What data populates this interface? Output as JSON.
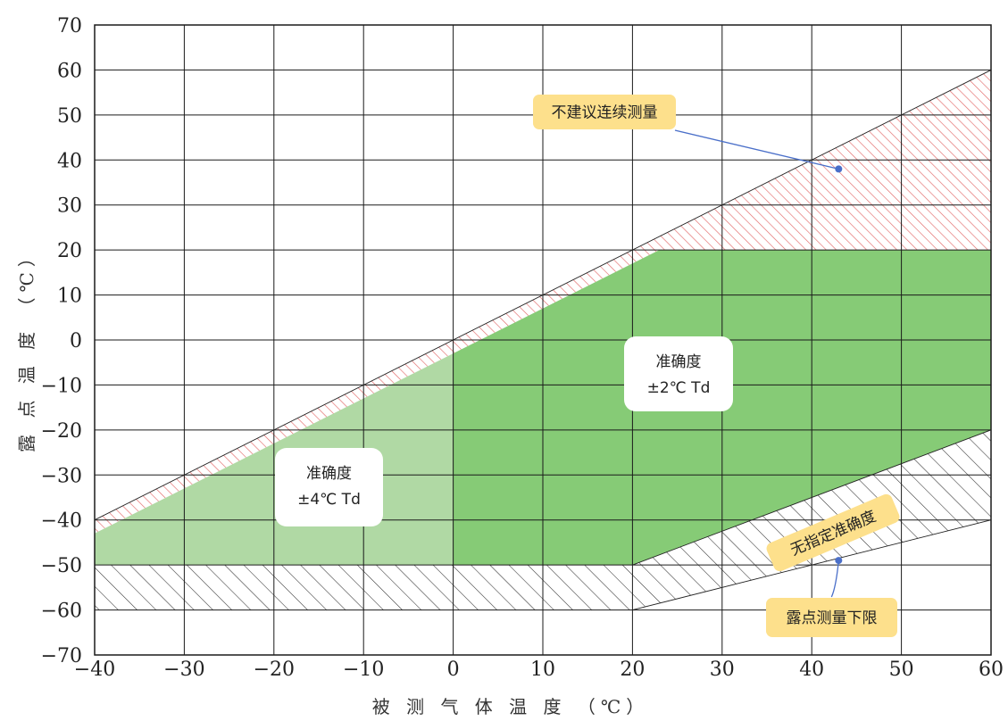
{
  "chart_data": {
    "type": "area",
    "title": "",
    "xlabel": "被 测 气 体 温 度 （℃）",
    "ylabel": "露 点 温 度 （℃）",
    "xlim": [
      -40,
      60
    ],
    "ylim": [
      -70,
      70
    ],
    "x_ticks": [
      -40,
      -30,
      -20,
      -10,
      0,
      10,
      20,
      30,
      40,
      50,
      60
    ],
    "y_ticks": [
      70,
      60,
      50,
      40,
      30,
      20,
      10,
      0,
      -10,
      -20,
      -30,
      -40,
      -50,
      -60,
      -70
    ],
    "x_tick_labels": [
      "−40",
      "−30",
      "−20",
      "−10",
      "0",
      "10",
      "20",
      "30",
      "40",
      "50",
      "60"
    ],
    "y_tick_labels": [
      "70",
      "60",
      "50",
      "40",
      "30",
      "20",
      "10",
      "0",
      "−10",
      "−20",
      "−30",
      "−40",
      "−50",
      "−60",
      "−70"
    ],
    "grid": true,
    "regions": [
      {
        "id": "accuracy-4c",
        "fill": "solid",
        "color": "#b0d9a4",
        "polygon": [
          [
            -40,
            -43
          ],
          [
            0,
            -3
          ],
          [
            0,
            -50
          ],
          [
            -40,
            -50
          ]
        ]
      },
      {
        "id": "accuracy-2c",
        "fill": "solid",
        "color": "#86cb76",
        "polygon": [
          [
            0,
            -3
          ],
          [
            20,
            17
          ],
          [
            23,
            20
          ],
          [
            60,
            20
          ],
          [
            60,
            -20
          ],
          [
            20,
            -50
          ],
          [
            0,
            -50
          ]
        ]
      },
      {
        "id": "not-recommended-continuous",
        "fill": "hatch",
        "color": "#e26a6a",
        "polygon": [
          [
            -40,
            -40
          ],
          [
            60,
            60
          ],
          [
            60,
            20
          ],
          [
            23,
            20
          ],
          [
            20,
            17
          ],
          [
            -40,
            -43
          ]
        ]
      },
      {
        "id": "no-specified-accuracy-bottom",
        "fill": "hatch",
        "color": "#333333",
        "polygon": [
          [
            -40,
            -50
          ],
          [
            20,
            -50
          ],
          [
            20,
            -60
          ],
          [
            -40,
            -60
          ]
        ]
      },
      {
        "id": "no-specified-accuracy-right",
        "fill": "hatch",
        "color": "#333333",
        "polygon": [
          [
            20,
            -50
          ],
          [
            60,
            -20
          ],
          [
            60,
            -40
          ],
          [
            20,
            -60
          ]
        ]
      }
    ],
    "annotations": [
      {
        "id": "accuracy-2c",
        "lines": [
          "准确度",
          "±2℃ Td"
        ]
      },
      {
        "id": "accuracy-4c",
        "lines": [
          "准确度",
          "±4℃ Td"
        ]
      },
      {
        "id": "not-recommended",
        "text": "不建议连续测量",
        "color": "#fde08c",
        "point": [
          43,
          38
        ]
      },
      {
        "id": "no-specified-accuracy",
        "text": "无指定准确度",
        "color": "#fde08c"
      },
      {
        "id": "dewpoint-lower-limit",
        "text": "露点测量下限",
        "color": "#fde08c",
        "point": [
          43,
          -49
        ]
      }
    ],
    "colors": {
      "grid": "#1a1a1a",
      "pointer": "#4a6fc9"
    }
  }
}
